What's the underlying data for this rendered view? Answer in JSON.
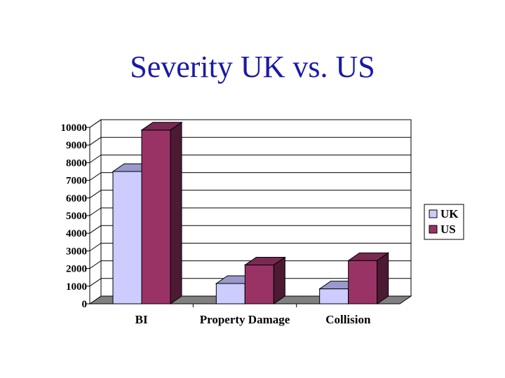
{
  "slide": {
    "title": "Severity UK vs. US",
    "title_color": "#1a1aa6"
  },
  "chart_data": {
    "type": "bar",
    "title": "",
    "xlabel": "",
    "ylabel": "",
    "categories": [
      "BI",
      "Property Damage",
      "Collision"
    ],
    "series": [
      {
        "name": "UK",
        "values": [
          7500,
          1150,
          850
        ],
        "color": "#ccccff",
        "top_color": "#9999cc",
        "side_color": "#8f8fbf"
      },
      {
        "name": "US",
        "values": [
          9850,
          2200,
          2450
        ],
        "color": "#993366",
        "top_color": "#7a2952",
        "side_color": "#4d1a33"
      }
    ],
    "ylim": [
      0,
      10000
    ],
    "yticks": [
      0,
      1000,
      2000,
      3000,
      4000,
      5000,
      6000,
      7000,
      8000,
      9000,
      10000
    ],
    "ytick_labels": [
      "0",
      "1000",
      "2000",
      "3000",
      "4000",
      "5000",
      "6000",
      "7000",
      "8000",
      "9000",
      "10000"
    ],
    "grid": true,
    "view": "3d",
    "legend_position": "right"
  }
}
